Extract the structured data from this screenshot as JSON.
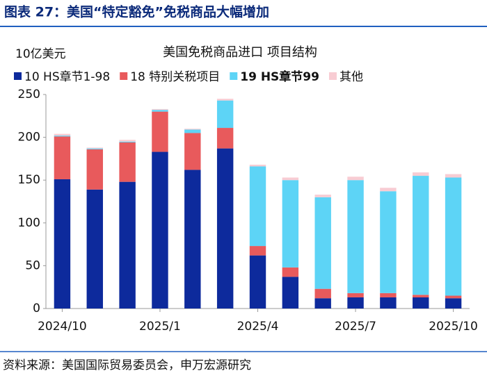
{
  "header": {
    "title": "图表 27：美国“特定豁免”免税商品大幅增加"
  },
  "chart_data": {
    "type": "stacked_bar",
    "title": "美国免税商品进口 项目结构",
    "y_label": "10亿美元",
    "categories": [
      "2024/10",
      null,
      null,
      "2025/1",
      null,
      null,
      "2025/4",
      null,
      null,
      "2025/7",
      null,
      null,
      "2025/10"
    ],
    "series": [
      {
        "name": "10 HS章节1-98",
        "color": "#0d2a9c",
        "values": [
          151,
          139,
          148,
          183,
          162,
          187,
          62,
          37,
          12,
          13,
          13,
          13,
          12
        ]
      },
      {
        "name": "18 特别关税项目",
        "color": "#e85a5c",
        "values": [
          50,
          47,
          46,
          47,
          43,
          24,
          11,
          11,
          11,
          5,
          5,
          3,
          3
        ]
      },
      {
        "name": "19 HS章节99",
        "color": "#5dd4f6",
        "values": [
          1,
          1,
          1,
          2,
          4,
          32,
          93,
          102,
          107,
          132,
          119,
          139,
          138
        ]
      },
      {
        "name": "其他",
        "color": "#f8ccd3",
        "values": [
          2,
          1,
          2,
          1,
          1,
          2,
          2,
          3,
          3,
          4,
          4,
          4,
          4
        ]
      }
    ],
    "ylim": [
      0,
      250
    ],
    "yticks": [
      0,
      50,
      100,
      150,
      200,
      250
    ],
    "grid": false
  },
  "footer": {
    "source": "资料来源：美国国际贸易委员会，申万宏源研究"
  }
}
